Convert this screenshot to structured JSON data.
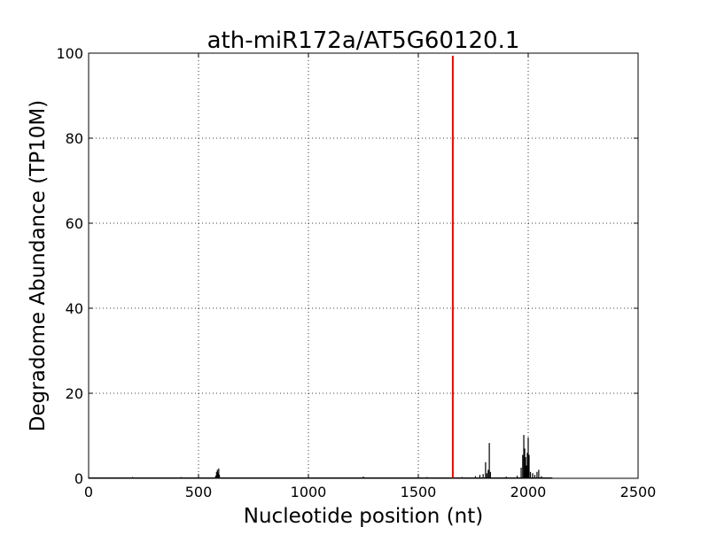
{
  "chart_data": {
    "type": "line",
    "title": "ath-miR172a/AT5G60120.1",
    "xlabel": "Nucleotide position (nt)",
    "ylabel": "Degradome Abundance (TP10M)",
    "xlim": [
      0,
      2500
    ],
    "ylim": [
      0,
      100
    ],
    "xticks": [
      0,
      500,
      1000,
      1500,
      2000,
      2500
    ],
    "yticks": [
      0,
      20,
      40,
      60,
      80,
      100
    ],
    "grid": true,
    "series": [
      {
        "color": "#000000",
        "points": [
          [
            60,
            0.2
          ],
          [
            200,
            0.3
          ],
          [
            350,
            0.2
          ],
          [
            420,
            0.3
          ],
          [
            578,
            0.6
          ],
          [
            582,
            1.5
          ],
          [
            586,
            2.0
          ],
          [
            589,
            1.2
          ],
          [
            592,
            2.3
          ],
          [
            595,
            0.8
          ],
          [
            700,
            0.2
          ],
          [
            900,
            0.2
          ],
          [
            1050,
            0.2
          ],
          [
            1250,
            0.4
          ],
          [
            1400,
            0.2
          ],
          [
            1540,
            0.3
          ],
          [
            1700,
            0.3
          ],
          [
            1760,
            0.5
          ],
          [
            1780,
            0.8
          ],
          [
            1795,
            1.0
          ],
          [
            1806,
            3.8
          ],
          [
            1812,
            1.2
          ],
          [
            1818,
            2.0
          ],
          [
            1823,
            8.3
          ],
          [
            1828,
            1.5
          ],
          [
            1900,
            0.4
          ],
          [
            1950,
            0.6
          ],
          [
            1968,
            2.5
          ],
          [
            1975,
            5.5
          ],
          [
            1980,
            10.2
          ],
          [
            1984,
            7.0
          ],
          [
            1988,
            5.0
          ],
          [
            1992,
            3.0
          ],
          [
            1996,
            6.0
          ],
          [
            2000,
            9.6
          ],
          [
            2004,
            5.5
          ],
          [
            2010,
            1.5
          ],
          [
            2020,
            1.2
          ],
          [
            2030,
            0.8
          ],
          [
            2040,
            1.5
          ],
          [
            2048,
            2.0
          ],
          [
            2060,
            0.5
          ],
          [
            2100,
            0.2
          ]
        ]
      },
      {
        "color": "#ff0000",
        "points": [
          [
            1657,
            99.4
          ]
        ]
      }
    ]
  }
}
